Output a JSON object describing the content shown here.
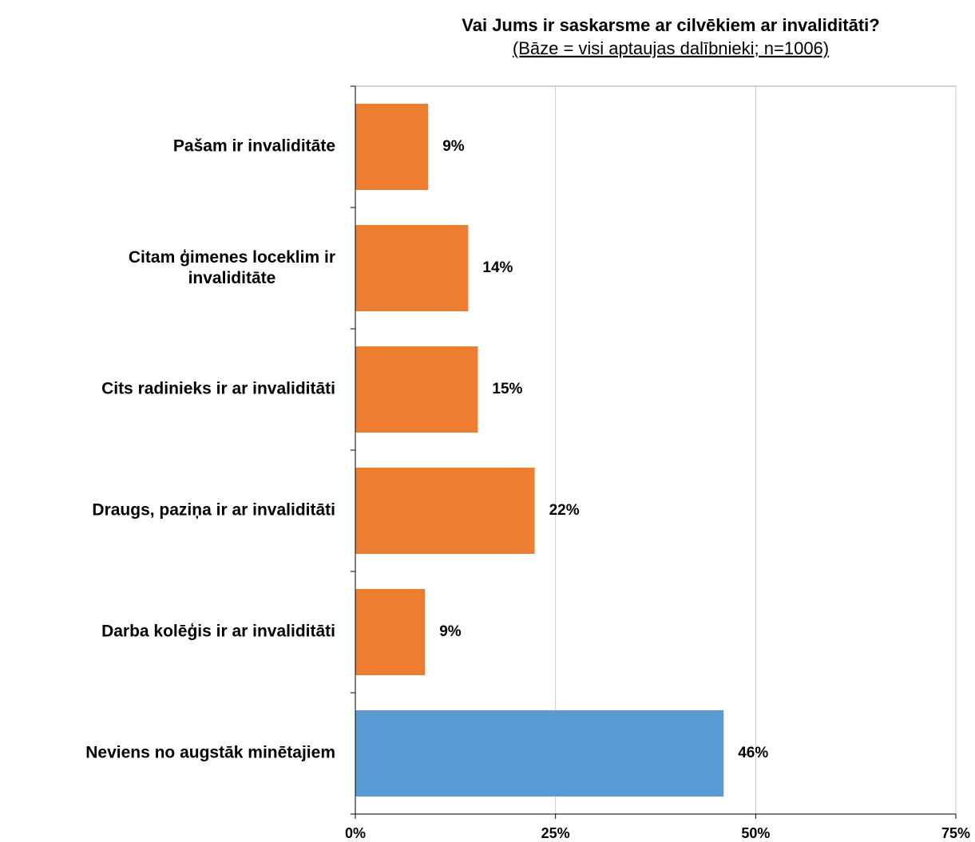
{
  "chart_data": {
    "type": "bar",
    "orientation": "horizontal",
    "title": "Vai Jums ir saskarsme ar cilvēkiem ar invaliditāti?",
    "subtitle": "(Bāze = visi aptaujas dalībnieki; n=1006)",
    "categories": [
      "Pašam ir invaliditāte",
      "Citam ģimenes loceklim ir invaliditāte",
      "Cits radinieks ir ar invaliditāti",
      "Draugs, paziņa ir ar invaliditāti",
      "Darba kolēģis ir ar invaliditāti",
      "Neviens no augstāk minētajiem"
    ],
    "values": [
      9.1,
      14.1,
      15.3,
      22.4,
      8.7,
      46
    ],
    "value_labels": [
      "9%",
      "14%",
      "15%",
      "22%",
      "9%",
      "46%"
    ],
    "colors": [
      "#ED7D31",
      "#ED7D31",
      "#ED7D31",
      "#ED7D31",
      "#ED7D31",
      "#5B9BD5"
    ],
    "xlim": [
      0,
      75
    ],
    "xticks": [
      {
        "value": 0,
        "label": "0%"
      },
      {
        "value": 25,
        "label": "25%"
      },
      {
        "value": 50,
        "label": "50%"
      },
      {
        "value": 75,
        "label": "75%"
      }
    ],
    "grid": true
  }
}
